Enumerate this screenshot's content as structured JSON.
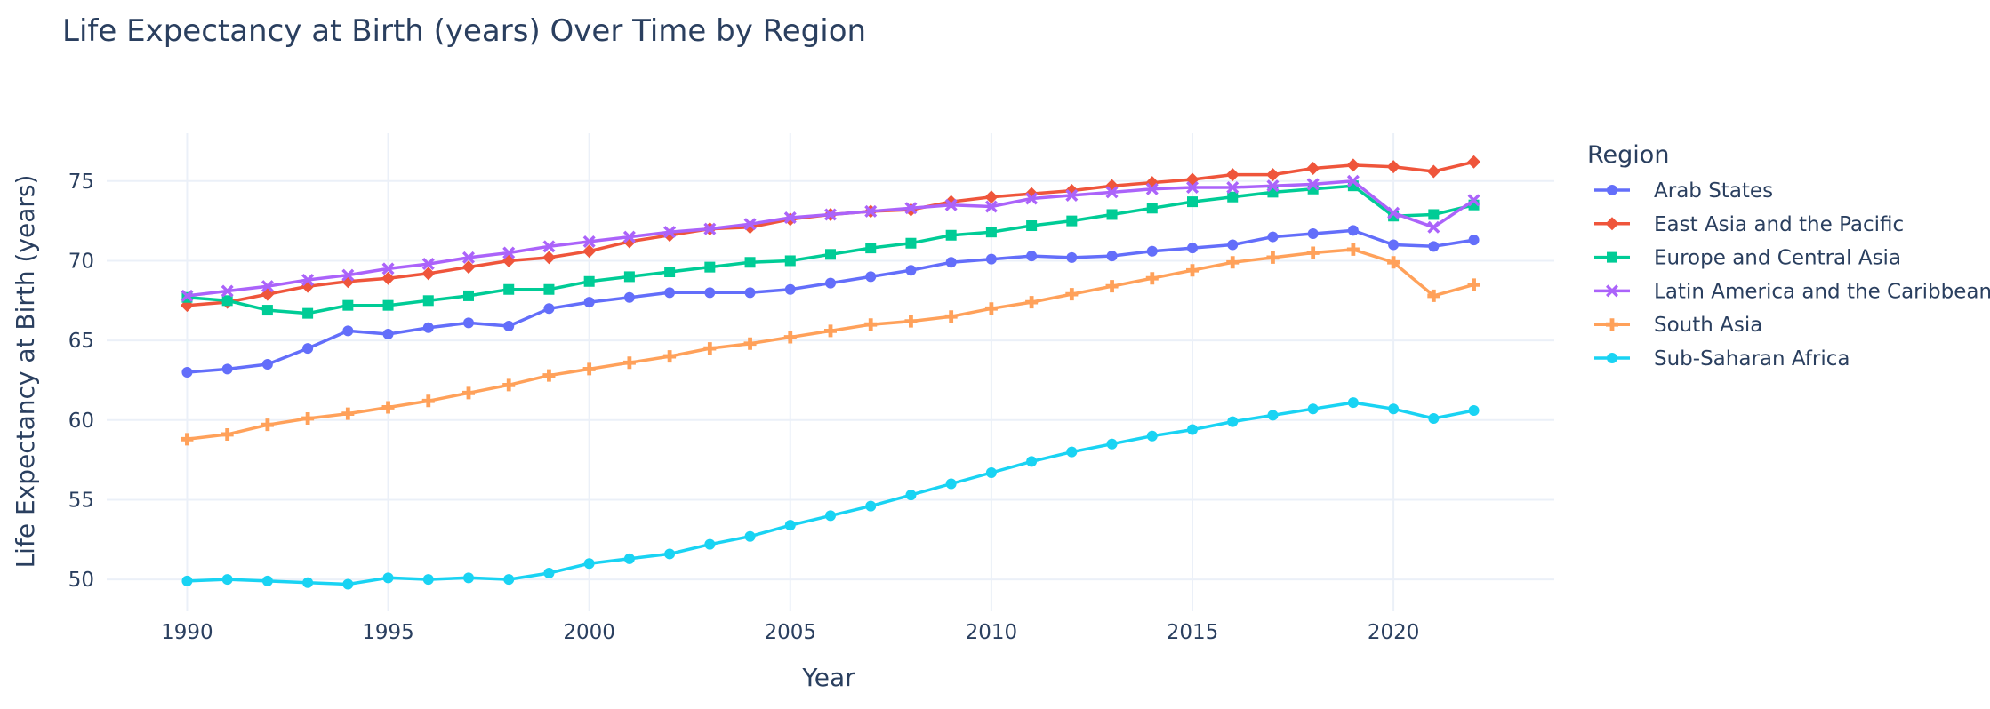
{
  "chart_data": {
    "type": "line",
    "title": "Life Expectancy at Birth (years) Over Time by Region",
    "xlabel": "Year",
    "ylabel": "Life Expectancy at Birth (years)",
    "xlim": [
      1988,
      2024
    ],
    "ylim": [
      48,
      78
    ],
    "x_ticks": [
      1990,
      1995,
      2000,
      2005,
      2010,
      2015,
      2020
    ],
    "y_ticks": [
      50,
      55,
      60,
      65,
      70,
      75
    ],
    "grid": true,
    "legend_title": "Region",
    "legend_position": "right",
    "x": [
      1990,
      1991,
      1992,
      1993,
      1994,
      1995,
      1996,
      1997,
      1998,
      1999,
      2000,
      2001,
      2002,
      2003,
      2004,
      2005,
      2006,
      2007,
      2008,
      2009,
      2010,
      2011,
      2012,
      2013,
      2014,
      2015,
      2016,
      2017,
      2018,
      2019,
      2020,
      2021,
      2022
    ],
    "series": [
      {
        "name": "Arab States",
        "color": "#636efa",
        "marker": "circle",
        "values": [
          63.0,
          63.2,
          63.5,
          64.5,
          65.6,
          65.4,
          65.8,
          66.1,
          65.9,
          67.0,
          67.4,
          67.7,
          68.0,
          68.0,
          68.0,
          68.2,
          68.6,
          69.0,
          69.4,
          69.9,
          70.1,
          70.3,
          70.2,
          70.3,
          70.6,
          70.8,
          71.0,
          71.5,
          71.7,
          71.9,
          71.0,
          70.9,
          71.3
        ]
      },
      {
        "name": "East Asia and the Pacific",
        "color": "#ef553b",
        "marker": "diamond",
        "values": [
          67.2,
          67.4,
          67.9,
          68.4,
          68.7,
          68.9,
          69.2,
          69.6,
          70.0,
          70.2,
          70.6,
          71.2,
          71.6,
          72.0,
          72.1,
          72.6,
          72.9,
          73.1,
          73.2,
          73.7,
          74.0,
          74.2,
          74.4,
          74.7,
          74.9,
          75.1,
          75.4,
          75.4,
          75.8,
          76.0,
          75.9,
          75.6,
          76.2
        ]
      },
      {
        "name": "Europe and Central Asia",
        "color": "#00cc96",
        "marker": "square",
        "values": [
          67.7,
          67.5,
          66.9,
          66.7,
          67.2,
          67.2,
          67.5,
          67.8,
          68.2,
          68.2,
          68.7,
          69.0,
          69.3,
          69.6,
          69.9,
          70.0,
          70.4,
          70.8,
          71.1,
          71.6,
          71.8,
          72.2,
          72.5,
          72.9,
          73.3,
          73.7,
          74.0,
          74.3,
          74.5,
          74.7,
          72.8,
          72.9,
          73.5
        ]
      },
      {
        "name": "Latin America and the Caribbean",
        "color": "#ab63fa",
        "marker": "x",
        "values": [
          67.8,
          68.1,
          68.4,
          68.8,
          69.1,
          69.5,
          69.8,
          70.2,
          70.5,
          70.9,
          71.2,
          71.5,
          71.8,
          72.0,
          72.3,
          72.7,
          72.9,
          73.1,
          73.3,
          73.5,
          73.4,
          73.9,
          74.1,
          74.3,
          74.5,
          74.6,
          74.6,
          74.7,
          74.8,
          75.0,
          73.0,
          72.1,
          73.8
        ]
      },
      {
        "name": "South Asia",
        "color": "#ffa15a",
        "marker": "cross",
        "values": [
          58.8,
          59.1,
          59.7,
          60.1,
          60.4,
          60.8,
          61.2,
          61.7,
          62.2,
          62.8,
          63.2,
          63.6,
          64.0,
          64.5,
          64.8,
          65.2,
          65.6,
          66.0,
          66.2,
          66.5,
          67.0,
          67.4,
          67.9,
          68.4,
          68.9,
          69.4,
          69.9,
          70.2,
          70.5,
          70.7,
          69.9,
          67.8,
          68.5
        ]
      },
      {
        "name": "Sub-Saharan Africa",
        "color": "#19d3f3",
        "marker": "circle",
        "values": [
          49.9,
          50.0,
          49.9,
          49.8,
          49.7,
          50.1,
          50.0,
          50.1,
          50.0,
          50.4,
          51.0,
          51.3,
          51.6,
          52.2,
          52.7,
          53.4,
          54.0,
          54.6,
          55.3,
          56.0,
          56.7,
          57.4,
          58.0,
          58.5,
          59.0,
          59.4,
          59.9,
          60.3,
          60.7,
          61.1,
          60.7,
          60.1,
          60.6
        ]
      }
    ]
  }
}
